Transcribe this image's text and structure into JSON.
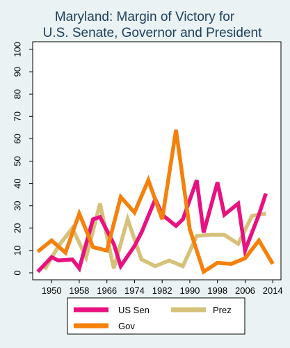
{
  "chart_data": {
    "type": "line",
    "title": [
      "Maryland: Margin of Victory for",
      "U.S. Senate, Governor and President"
    ],
    "xlabel": "",
    "ylabel": "",
    "xlim": [
      1946,
      2015
    ],
    "ylim": [
      0,
      100
    ],
    "x_ticks": [
      1950,
      1958,
      1966,
      1974,
      1982,
      1990,
      1998,
      2006,
      2014
    ],
    "y_ticks": [
      0,
      10,
      20,
      30,
      40,
      50,
      60,
      70,
      80,
      90,
      100
    ],
    "grid": false,
    "legend_position": "bottom",
    "series": [
      {
        "name": "US Sen",
        "color": "#e8117f",
        "points": [
          [
            1946,
            0.5
          ],
          [
            1950,
            7
          ],
          [
            1952,
            5.5
          ],
          [
            1956,
            6
          ],
          [
            1958,
            2
          ],
          [
            1962,
            24
          ],
          [
            1964,
            25
          ],
          [
            1968,
            13
          ],
          [
            1970,
            3
          ],
          [
            1974,
            12
          ],
          [
            1976,
            18
          ],
          [
            1980,
            33
          ],
          [
            1982,
            26
          ],
          [
            1986,
            21
          ],
          [
            1988,
            24
          ],
          [
            1992,
            41.5
          ],
          [
            1994,
            18
          ],
          [
            1998,
            40.5
          ],
          [
            2000,
            26
          ],
          [
            2004,
            31
          ],
          [
            2006,
            10
          ],
          [
            2010,
            26
          ],
          [
            2012,
            35.5
          ]
        ]
      },
      {
        "name": "Prez",
        "color": "#d6c17a",
        "points": [
          [
            1948,
            1.5
          ],
          [
            1952,
            12
          ],
          [
            1956,
            20
          ],
          [
            1960,
            7
          ],
          [
            1964,
            31
          ],
          [
            1968,
            2
          ],
          [
            1972,
            24
          ],
          [
            1976,
            6
          ],
          [
            1980,
            3
          ],
          [
            1984,
            5.5
          ],
          [
            1988,
            3
          ],
          [
            1992,
            16.5
          ],
          [
            1996,
            17
          ],
          [
            2000,
            17
          ],
          [
            2004,
            13
          ],
          [
            2008,
            25.5
          ],
          [
            2012,
            26.5
          ]
        ]
      },
      {
        "name": "Gov",
        "color": "#f5800b",
        "points": [
          [
            1946,
            9.5
          ],
          [
            1950,
            14.5
          ],
          [
            1954,
            9
          ],
          [
            1958,
            26.5
          ],
          [
            1962,
            11.5
          ],
          [
            1966,
            10
          ],
          [
            1970,
            34
          ],
          [
            1974,
            27
          ],
          [
            1978,
            41.5
          ],
          [
            1982,
            24
          ],
          [
            1986,
            64
          ],
          [
            1990,
            19.5
          ],
          [
            1994,
            0.5
          ],
          [
            1998,
            4.5
          ],
          [
            2002,
            4
          ],
          [
            2006,
            6.5
          ],
          [
            2010,
            14.5
          ],
          [
            2014,
            4
          ]
        ]
      }
    ]
  }
}
